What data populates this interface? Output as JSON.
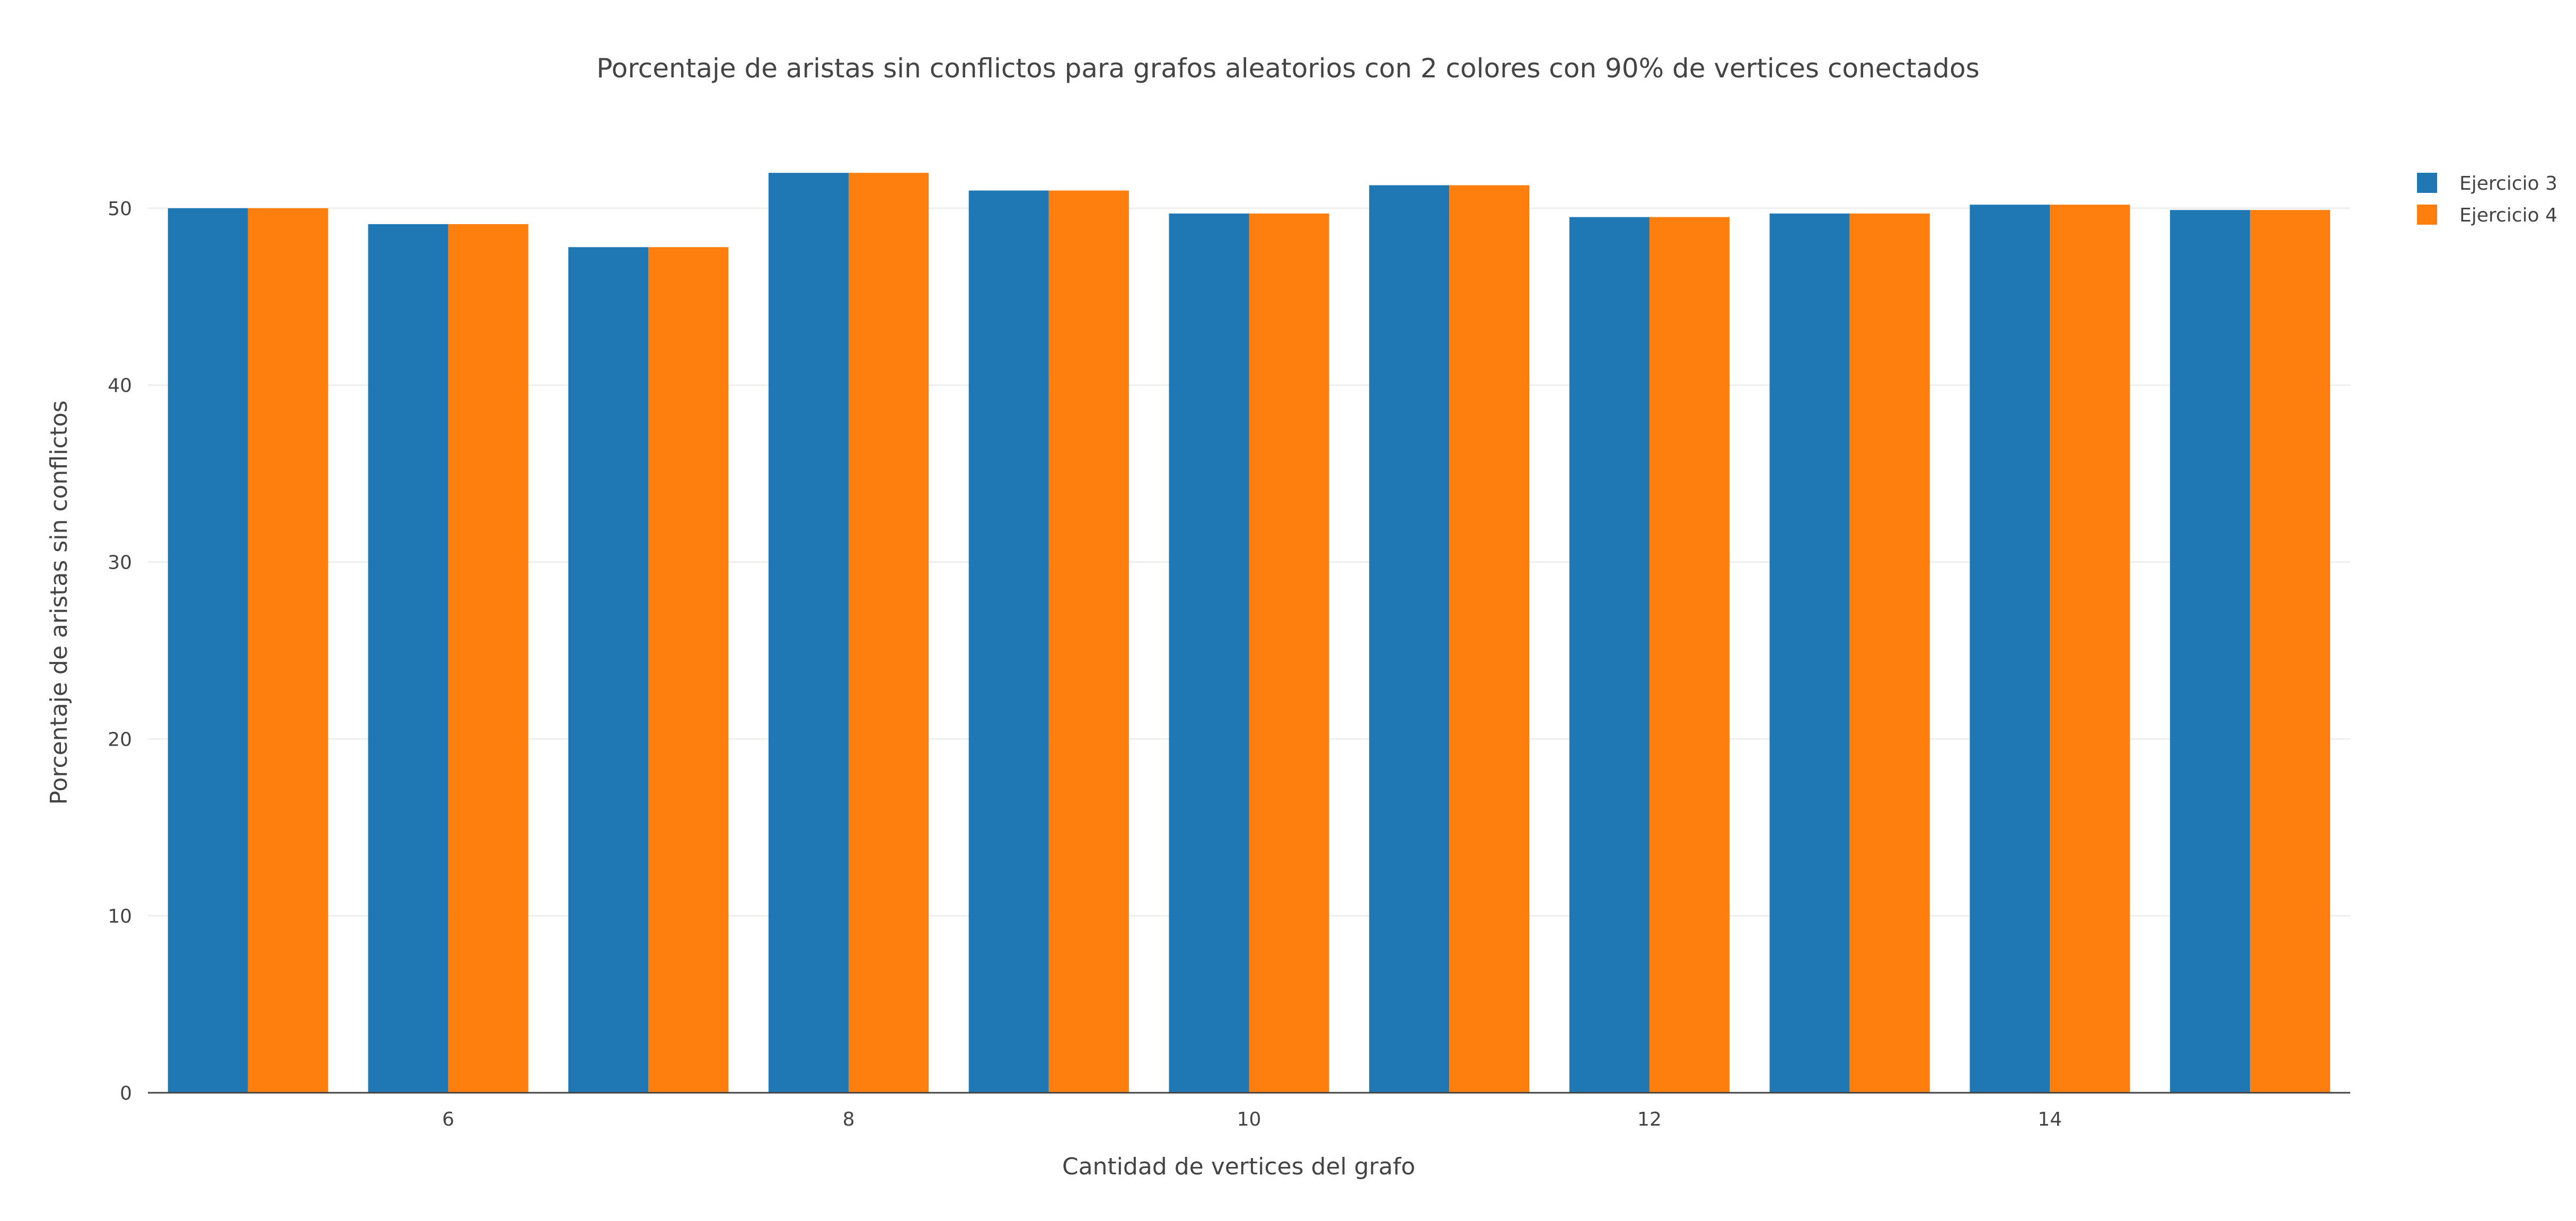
{
  "chart_data": {
    "type": "bar",
    "title": "Porcentaje de aristas sin conflictos para grafos aleatorios con 2 colores con 90% de vertices conectados",
    "xlabel": "Cantidad de vertices del grafo",
    "ylabel": "Porcentaje de aristas sin conflictos",
    "x": [
      5,
      6,
      7,
      8,
      9,
      10,
      11,
      12,
      13,
      14,
      15
    ],
    "x_ticks": [
      6,
      8,
      10,
      12,
      14
    ],
    "y_ticks": [
      0,
      10,
      20,
      30,
      40,
      50
    ],
    "ylim": [
      0,
      55
    ],
    "xlim": [
      4.5,
      15.5
    ],
    "grid": "horizontal",
    "legend_position": "top-right",
    "series": [
      {
        "name": "Ejercicio 3",
        "color": "#1f77b4",
        "values": [
          50.0,
          49.1,
          47.8,
          52.0,
          51.0,
          49.7,
          51.3,
          49.5,
          49.7,
          50.2,
          49.9
        ]
      },
      {
        "name": "Ejercicio 4",
        "color": "#ff7f0e",
        "values": [
          50.0,
          49.1,
          47.8,
          52.0,
          51.0,
          49.7,
          51.3,
          49.5,
          49.7,
          50.2,
          49.9
        ]
      }
    ]
  }
}
